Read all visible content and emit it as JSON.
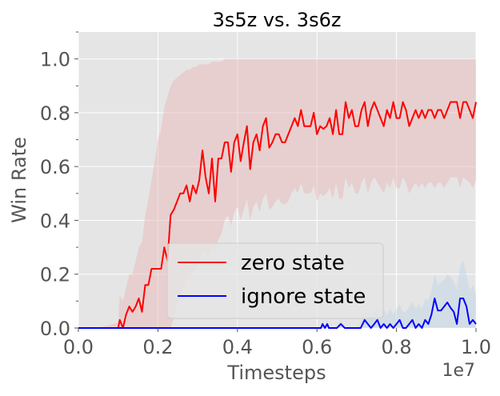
{
  "chart_data": {
    "type": "line",
    "title": "3s5z vs. 3s6z",
    "xlabel": "Timesteps",
    "ylabel": "Win Rate",
    "x_offset_label": "1e7",
    "xlim": [
      0.0,
      1.0
    ],
    "ylim": [
      0.0,
      1.1
    ],
    "xticks": [
      0.0,
      0.2,
      0.4,
      0.6,
      0.8,
      1.0
    ],
    "xtick_labels": [
      "0.0",
      "0.2",
      "0.4",
      "0.6",
      "0.8",
      "1.0"
    ],
    "yticks": [
      0.0,
      0.2,
      0.4,
      0.6,
      0.8,
      1.0
    ],
    "ytick_labels": [
      "0.0",
      "0.2",
      "0.4",
      "0.6",
      "0.8",
      "1.0"
    ],
    "grid": true,
    "legend_position": "lower-center",
    "background_color": "#e5e5e5",
    "series": [
      {
        "name": "zero state",
        "color": "#ff0000",
        "band_color": "#e8b4b4",
        "x": [
          0.0,
          0.05,
          0.1,
          0.104,
          0.112,
          0.12,
          0.128,
          0.136,
          0.144,
          0.152,
          0.16,
          0.168,
          0.176,
          0.184,
          0.192,
          0.2,
          0.208,
          0.216,
          0.224,
          0.232,
          0.24,
          0.248,
          0.256,
          0.264,
          0.272,
          0.28,
          0.288,
          0.296,
          0.304,
          0.312,
          0.32,
          0.328,
          0.336,
          0.344,
          0.352,
          0.36,
          0.368,
          0.376,
          0.384,
          0.392,
          0.4,
          0.408,
          0.416,
          0.424,
          0.432,
          0.44,
          0.448,
          0.456,
          0.464,
          0.472,
          0.48,
          0.488,
          0.496,
          0.504,
          0.512,
          0.52,
          0.528,
          0.536,
          0.544,
          0.552,
          0.56,
          0.568,
          0.576,
          0.584,
          0.592,
          0.6,
          0.608,
          0.616,
          0.624,
          0.632,
          0.64,
          0.648,
          0.656,
          0.664,
          0.672,
          0.68,
          0.688,
          0.696,
          0.704,
          0.712,
          0.72,
          0.728,
          0.736,
          0.744,
          0.752,
          0.76,
          0.768,
          0.776,
          0.784,
          0.792,
          0.8,
          0.808,
          0.816,
          0.824,
          0.832,
          0.84,
          0.848,
          0.856,
          0.864,
          0.872,
          0.88,
          0.888,
          0.896,
          0.904,
          0.912,
          0.92,
          0.928,
          0.936,
          0.944,
          0.952,
          0.96,
          0.968,
          0.976,
          0.984,
          0.992,
          1.0
        ],
        "values": [
          0.0,
          0.0,
          0.0,
          0.03,
          0.0,
          0.05,
          0.08,
          0.06,
          0.08,
          0.11,
          0.06,
          0.16,
          0.16,
          0.22,
          0.22,
          0.22,
          0.22,
          0.3,
          0.25,
          0.42,
          0.44,
          0.47,
          0.5,
          0.5,
          0.53,
          0.47,
          0.53,
          0.5,
          0.55,
          0.66,
          0.56,
          0.5,
          0.63,
          0.47,
          0.63,
          0.63,
          0.69,
          0.69,
          0.58,
          0.69,
          0.72,
          0.62,
          0.69,
          0.75,
          0.59,
          0.69,
          0.72,
          0.66,
          0.75,
          0.78,
          0.67,
          0.69,
          0.72,
          0.72,
          0.69,
          0.69,
          0.72,
          0.75,
          0.78,
          0.75,
          0.81,
          0.75,
          0.75,
          0.75,
          0.8,
          0.72,
          0.75,
          0.74,
          0.75,
          0.78,
          0.72,
          0.81,
          0.72,
          0.72,
          0.84,
          0.78,
          0.81,
          0.75,
          0.75,
          0.81,
          0.84,
          0.75,
          0.81,
          0.84,
          0.81,
          0.78,
          0.75,
          0.81,
          0.78,
          0.84,
          0.78,
          0.78,
          0.84,
          0.81,
          0.75,
          0.78,
          0.81,
          0.78,
          0.81,
          0.78,
          0.81,
          0.81,
          0.78,
          0.81,
          0.81,
          0.78,
          0.81,
          0.84,
          0.84,
          0.84,
          0.78,
          0.84,
          0.84,
          0.81,
          0.78,
          0.84
        ],
        "band_lower": [
          0.0,
          0.0,
          0.0,
          0.0,
          0.0,
          0.0,
          0.0,
          0.0,
          0.0,
          0.0,
          0.0,
          0.0,
          0.0,
          0.0,
          0.0,
          0.0,
          0.0,
          0.0,
          0.0,
          0.0,
          0.04,
          0.08,
          0.12,
          0.15,
          0.18,
          0.18,
          0.21,
          0.22,
          0.25,
          0.28,
          0.28,
          0.26,
          0.3,
          0.28,
          0.33,
          0.35,
          0.4,
          0.42,
          0.38,
          0.43,
          0.45,
          0.4,
          0.44,
          0.48,
          0.4,
          0.45,
          0.47,
          0.43,
          0.48,
          0.5,
          0.44,
          0.45,
          0.47,
          0.48,
          0.46,
          0.46,
          0.47,
          0.5,
          0.52,
          0.5,
          0.54,
          0.5,
          0.5,
          0.5,
          0.53,
          0.47,
          0.5,
          0.49,
          0.5,
          0.52,
          0.48,
          0.54,
          0.48,
          0.48,
          0.56,
          0.52,
          0.54,
          0.5,
          0.5,
          0.54,
          0.56,
          0.5,
          0.54,
          0.56,
          0.54,
          0.52,
          0.5,
          0.54,
          0.52,
          0.56,
          0.52,
          0.52,
          0.56,
          0.54,
          0.5,
          0.52,
          0.54,
          0.52,
          0.54,
          0.52,
          0.54,
          0.54,
          0.52,
          0.54,
          0.54,
          0.52,
          0.54,
          0.56,
          0.56,
          0.56,
          0.52,
          0.56,
          0.55,
          0.54,
          0.52,
          0.55
        ],
        "band_upper": [
          0.0,
          0.0,
          0.02,
          0.12,
          0.1,
          0.15,
          0.2,
          0.2,
          0.25,
          0.3,
          0.32,
          0.42,
          0.48,
          0.55,
          0.62,
          0.7,
          0.74,
          0.82,
          0.86,
          0.9,
          0.92,
          0.93,
          0.94,
          0.95,
          0.96,
          0.96,
          0.97,
          0.97,
          0.98,
          0.98,
          0.98,
          0.98,
          0.99,
          0.99,
          0.99,
          0.99,
          1.0,
          1.0,
          1.0,
          1.0,
          1.0,
          1.0,
          1.0,
          1.0,
          1.0,
          1.0,
          1.0,
          1.0,
          1.0,
          1.0,
          1.0,
          1.0,
          1.0,
          1.0,
          1.0,
          1.0,
          1.0,
          1.0,
          1.0,
          1.0,
          1.0,
          1.0,
          1.0,
          1.0,
          1.0,
          1.0,
          1.0,
          1.0,
          1.0,
          1.0,
          1.0,
          1.0,
          1.0,
          1.0,
          1.0,
          1.0,
          1.0,
          1.0,
          1.0,
          1.0,
          1.0,
          1.0,
          1.0,
          1.0,
          1.0,
          1.0,
          1.0,
          1.0,
          1.0,
          1.0,
          1.0,
          1.0,
          1.0,
          1.0,
          1.0,
          1.0,
          1.0,
          1.0,
          1.0,
          1.0,
          1.0,
          1.0,
          1.0,
          1.0,
          1.0,
          1.0,
          1.0,
          1.0,
          1.0,
          1.0,
          1.0,
          1.0,
          1.0,
          1.0,
          1.0,
          1.0
        ]
      },
      {
        "name": "ignore state",
        "color": "#0000ff",
        "band_color": "#bcd3e6",
        "x": [
          0.0,
          0.6,
          0.61,
          0.614,
          0.62,
          0.626,
          0.63,
          0.64,
          0.65,
          0.66,
          0.67,
          0.68,
          0.69,
          0.7,
          0.71,
          0.72,
          0.728,
          0.736,
          0.744,
          0.752,
          0.76,
          0.768,
          0.776,
          0.784,
          0.792,
          0.8,
          0.808,
          0.816,
          0.824,
          0.832,
          0.84,
          0.848,
          0.856,
          0.864,
          0.872,
          0.88,
          0.888,
          0.896,
          0.904,
          0.912,
          0.92,
          0.928,
          0.936,
          0.944,
          0.952,
          0.96,
          0.968,
          0.976,
          0.984,
          0.992,
          1.0
        ],
        "values": [
          0.0,
          0.0,
          0.0,
          0.015,
          0.0,
          0.015,
          0.0,
          0.0,
          0.0,
          0.015,
          0.0,
          0.0,
          0.0,
          0.0,
          0.0,
          0.03,
          0.015,
          0.0,
          0.015,
          0.03,
          0.0,
          0.015,
          0.0,
          0.015,
          0.0,
          0.015,
          0.03,
          0.0,
          0.0,
          0.015,
          0.03,
          0.0,
          0.015,
          0.0,
          0.03,
          0.015,
          0.05,
          0.11,
          0.065,
          0.065,
          0.08,
          0.095,
          0.075,
          0.06,
          0.015,
          0.11,
          0.11,
          0.08,
          0.015,
          0.03,
          0.015
        ],
        "band_lower": [
          0.0,
          0.0,
          0.0,
          0.0,
          0.0,
          0.0,
          0.0,
          0.0,
          0.0,
          0.0,
          0.0,
          0.0,
          0.0,
          0.0,
          0.0,
          0.0,
          0.0,
          0.0,
          0.0,
          0.0,
          0.0,
          0.0,
          0.0,
          0.0,
          0.0,
          0.0,
          0.0,
          0.0,
          0.0,
          0.0,
          0.0,
          0.0,
          0.0,
          0.0,
          0.0,
          0.0,
          0.0,
          0.0,
          0.0,
          0.0,
          0.0,
          0.0,
          0.0,
          0.0,
          0.0,
          0.0,
          0.0,
          0.0,
          0.0,
          0.0,
          0.0
        ],
        "band_upper": [
          0.0,
          0.0,
          0.0,
          0.03,
          0.0,
          0.03,
          0.0,
          0.0,
          0.0,
          0.03,
          0.0,
          0.0,
          0.0,
          0.0,
          0.02,
          0.07,
          0.06,
          0.05,
          0.06,
          0.08,
          0.05,
          0.07,
          0.05,
          0.07,
          0.05,
          0.07,
          0.09,
          0.06,
          0.06,
          0.08,
          0.1,
          0.07,
          0.09,
          0.07,
          0.11,
          0.1,
          0.14,
          0.2,
          0.16,
          0.17,
          0.18,
          0.2,
          0.19,
          0.17,
          0.14,
          0.23,
          0.25,
          0.2,
          0.14,
          0.16,
          0.13
        ]
      }
    ]
  }
}
